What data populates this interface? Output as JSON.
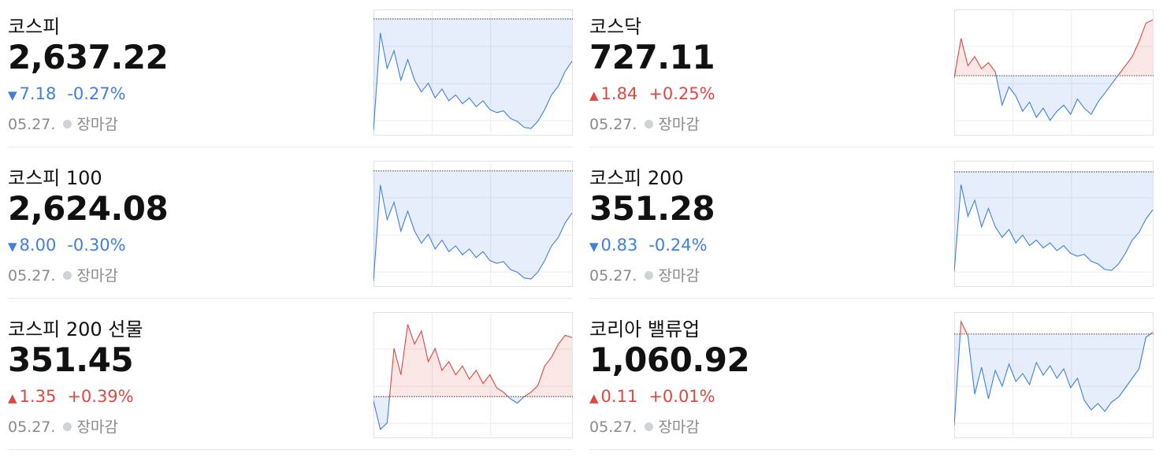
{
  "up_color": "#e0473e",
  "down_color": "#3f7fe0",
  "cards": [
    {
      "name": "코스피",
      "value": "2,637.22",
      "direction": "down",
      "change": "7.18",
      "change_pct": "-0.27%",
      "date": "05.27.",
      "status": "장마감",
      "chart": {
        "baseline": 2644.4,
        "ylim": [
          2624.6,
          2646
        ],
        "values": [
          2625.5,
          2642,
          2636,
          2639,
          2634,
          2637.5,
          2634,
          2632,
          2633.5,
          2631,
          2632.5,
          2630.5,
          2631.5,
          2630,
          2631,
          2629.5,
          2630.5,
          2629,
          2628.5,
          2628.8,
          2627.5,
          2627,
          2626,
          2625.8,
          2627,
          2629,
          2631.5,
          2633,
          2635.5,
          2637.22
        ]
      }
    },
    {
      "name": "코스닥",
      "value": "727.11",
      "direction": "up",
      "change": "1.84",
      "change_pct": "+0.25%",
      "date": "05.27.",
      "status": "장마감",
      "chart": {
        "baseline": 725.27,
        "ylim": [
          723.3,
          727.45
        ],
        "values": [
          725.2,
          726.5,
          725.6,
          725.9,
          725.5,
          725.7,
          725.4,
          724.3,
          724.9,
          724.6,
          724.1,
          724.4,
          723.9,
          724.2,
          723.8,
          724.1,
          724.3,
          724.0,
          724.5,
          724.2,
          724.0,
          724.4,
          724.7,
          725.0,
          725.3,
          725.6,
          725.9,
          726.4,
          727.0,
          727.11
        ]
      }
    },
    {
      "name": "코스피 100",
      "value": "2,624.08",
      "direction": "down",
      "change": "8.00",
      "change_pct": "-0.30%",
      "date": "05.27.",
      "status": "장마감",
      "chart": {
        "baseline": 2632.08,
        "ylim": [
          2610,
          2634
        ],
        "values": [
          2611.1,
          2629.4,
          2622.8,
          2626.1,
          2620.6,
          2624.4,
          2620.6,
          2618.3,
          2620,
          2617.2,
          2618.9,
          2616.7,
          2617.8,
          2616.1,
          2617.2,
          2615.6,
          2616.7,
          2615,
          2614.5,
          2614.8,
          2613.3,
          2612.8,
          2611.7,
          2611.5,
          2612.8,
          2615,
          2617.8,
          2619.4,
          2622.2,
          2624.08
        ]
      }
    },
    {
      "name": "코스피 200",
      "value": "351.28",
      "direction": "down",
      "change": "0.83",
      "change_pct": "-0.24%",
      "date": "05.27.",
      "status": "장마감",
      "chart": {
        "baseline": 352.11,
        "ylim": [
          349.6,
          352.35
        ],
        "values": [
          349.93,
          351.83,
          351.14,
          351.49,
          350.91,
          351.31,
          350.91,
          350.68,
          350.85,
          350.56,
          350.73,
          350.5,
          350.62,
          350.45,
          350.56,
          350.39,
          350.5,
          350.33,
          350.27,
          350.31,
          350.16,
          350.1,
          349.98,
          349.96,
          350.1,
          350.33,
          350.62,
          350.79,
          351.08,
          351.28
        ]
      }
    },
    {
      "name": "코스피 200 선물",
      "value": "351.45",
      "direction": "up",
      "change": "1.35",
      "change_pct": "+0.39%",
      "date": "05.27.",
      "status": "장마감",
      "chart": {
        "baseline": 350.1,
        "ylim": [
          349.15,
          352.03
        ],
        "values": [
          350.0,
          349.35,
          349.5,
          351.2,
          350.6,
          351.75,
          351.3,
          351.6,
          350.9,
          351.2,
          350.7,
          350.9,
          350.6,
          350.8,
          350.5,
          350.7,
          350.4,
          350.6,
          350.3,
          350.2,
          350.05,
          349.95,
          350.1,
          350.2,
          350.35,
          350.8,
          351.0,
          351.3,
          351.5,
          351.45
        ]
      }
    },
    {
      "name": "코리아 밸류업",
      "value": "1,060.92",
      "direction": "up",
      "change": "0.11",
      "change_pct": "+0.01%",
      "date": "05.27.",
      "status": "장마감",
      "chart": {
        "baseline": 1060.81,
        "ylim": [
          1054.2,
          1062.2
        ],
        "values": [
          1055.0,
          1061.6,
          1060.7,
          1057.0,
          1058.7,
          1056.7,
          1058.5,
          1057.5,
          1058.9,
          1057.8,
          1058.3,
          1057.6,
          1059.0,
          1058.2,
          1058.8,
          1058.0,
          1058.6,
          1057.4,
          1058.0,
          1056.6,
          1056.0,
          1056.4,
          1055.9,
          1056.5,
          1056.8,
          1057.4,
          1058.0,
          1058.6,
          1060.6,
          1060.92
        ]
      }
    }
  ]
}
